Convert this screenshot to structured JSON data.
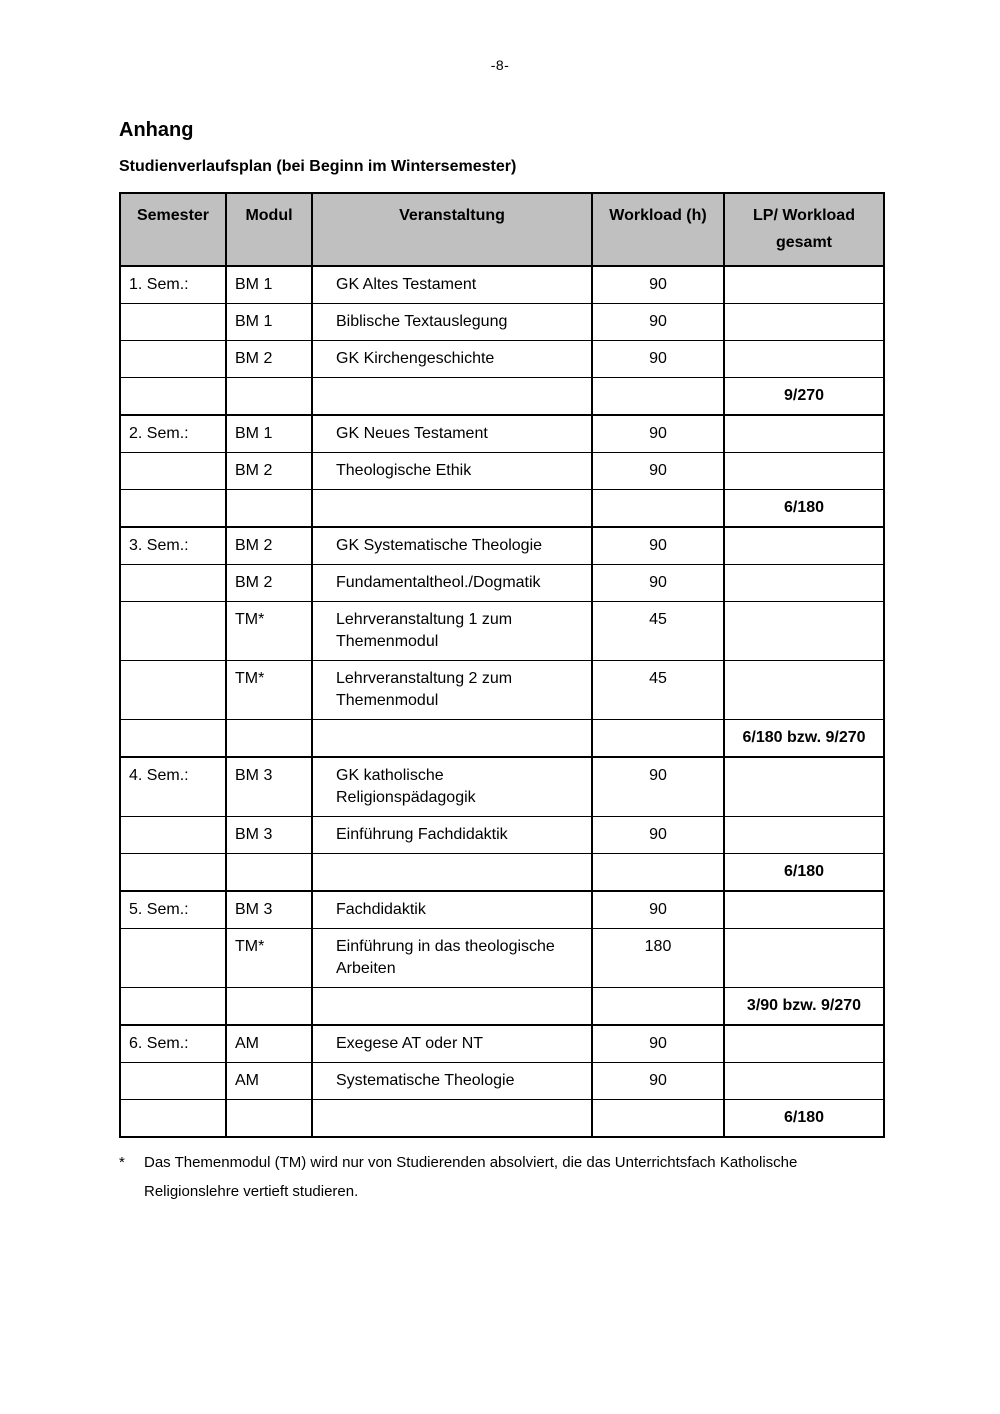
{
  "page_number": "-8-",
  "heading": "Anhang",
  "subheading": "Studienverlaufsplan (bei Beginn im Wintersemester)",
  "colors": {
    "table_header_bg": "#c0c0c0",
    "border": "#000000"
  },
  "table": {
    "headers": [
      "Semester",
      "Modul",
      "Veranstaltung",
      "Workload (h)",
      "LP/ Workload\ngesamt"
    ],
    "rows": [
      {
        "semester": "1. Sem.:",
        "modul": "BM 1",
        "veranstaltung": "GK Altes Testament",
        "workload": "90",
        "lp": "",
        "kind": "course",
        "group_start": true
      },
      {
        "semester": "",
        "modul": "BM 1",
        "veranstaltung": "Biblische Textauslegung",
        "workload": "90",
        "lp": "",
        "kind": "course",
        "group_start": false
      },
      {
        "semester": "",
        "modul": "BM 2",
        "veranstaltung": "GK Kirchengeschichte",
        "workload": "90",
        "lp": "",
        "kind": "course",
        "group_start": false
      },
      {
        "semester": "",
        "modul": "",
        "veranstaltung": "",
        "workload": "",
        "lp": "9/270",
        "kind": "summary",
        "group_start": false
      },
      {
        "semester": "2. Sem.:",
        "modul": "BM 1",
        "veranstaltung": "GK Neues Testament",
        "workload": "90",
        "lp": "",
        "kind": "course",
        "group_start": true
      },
      {
        "semester": "",
        "modul": "BM 2",
        "veranstaltung": "Theologische Ethik",
        "workload": "90",
        "lp": "",
        "kind": "course",
        "group_start": false
      },
      {
        "semester": "",
        "modul": "",
        "veranstaltung": "",
        "workload": "",
        "lp": "6/180",
        "kind": "summary",
        "group_start": false
      },
      {
        "semester": "3. Sem.:",
        "modul": "BM 2",
        "veranstaltung": "GK Systematische Theologie",
        "workload": "90",
        "lp": "",
        "kind": "course",
        "group_start": true
      },
      {
        "semester": "",
        "modul": "BM 2",
        "veranstaltung": "Fundamentaltheol./Dogmatik",
        "workload": "90",
        "lp": "",
        "kind": "course",
        "group_start": false
      },
      {
        "semester": "",
        "modul": "TM*",
        "veranstaltung": "Lehrveranstaltung 1 zum\nThemenmodul",
        "workload": "45",
        "lp": "",
        "kind": "course",
        "group_start": false
      },
      {
        "semester": "",
        "modul": "TM*",
        "veranstaltung": "Lehrveranstaltung 2 zum\nThemenmodul",
        "workload": "45",
        "lp": "",
        "kind": "course",
        "group_start": false
      },
      {
        "semester": "",
        "modul": "",
        "veranstaltung": "",
        "workload": "",
        "lp": "6/180 bzw. 9/270",
        "kind": "summary",
        "group_start": false
      },
      {
        "semester": "4. Sem.:",
        "modul": "BM 3",
        "veranstaltung": "GK katholische Religionspädagogik",
        "workload": "90",
        "lp": "",
        "kind": "course",
        "group_start": true
      },
      {
        "semester": "",
        "modul": "BM 3",
        "veranstaltung": "Einführung Fachdidaktik",
        "workload": "90",
        "lp": "",
        "kind": "course",
        "group_start": false
      },
      {
        "semester": "",
        "modul": "",
        "veranstaltung": "",
        "workload": "",
        "lp": "6/180",
        "kind": "summary",
        "group_start": false
      },
      {
        "semester": "5. Sem.:",
        "modul": "BM 3",
        "veranstaltung": "Fachdidaktik",
        "workload": "90",
        "lp": "",
        "kind": "course",
        "group_start": true
      },
      {
        "semester": "",
        "modul": "TM*",
        "veranstaltung": "Einführung in das theologische\nArbeiten",
        "workload": "180",
        "lp": "",
        "kind": "course",
        "group_start": false
      },
      {
        "semester": "",
        "modul": "",
        "veranstaltung": "",
        "workload": "",
        "lp": "3/90 bzw. 9/270",
        "kind": "summary",
        "group_start": false
      },
      {
        "semester": "6. Sem.:",
        "modul": "AM",
        "veranstaltung": "Exegese AT oder NT",
        "workload": "90",
        "lp": "",
        "kind": "course",
        "group_start": true
      },
      {
        "semester": "",
        "modul": "AM",
        "veranstaltung": "Systematische Theologie",
        "workload": "90",
        "lp": "",
        "kind": "course",
        "group_start": false
      },
      {
        "semester": "",
        "modul": "",
        "veranstaltung": "",
        "workload": "",
        "lp": "6/180",
        "kind": "summary",
        "group_start": false
      }
    ]
  },
  "footnote": {
    "marker": "*",
    "text": "Das Themenmodul (TM) wird nur von Studierenden absolviert, die das Unterrichtsfach Katholische Religionslehre vertieft studieren."
  }
}
